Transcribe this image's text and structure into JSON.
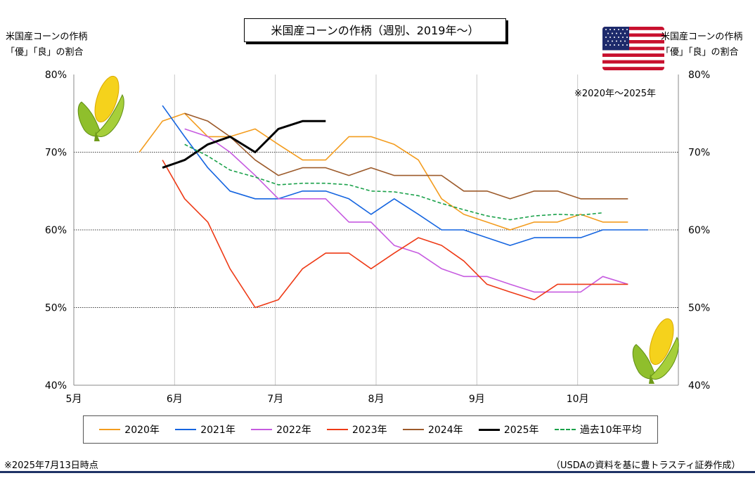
{
  "title": "米国産コーンの作柄（週別、2019年～）",
  "y_axis_left_title": [
    "米国産コーンの作柄",
    "「優」「良」の割合"
  ],
  "y_axis_right_title": [
    "米国産コーンの作柄",
    "「優」「良」の割合"
  ],
  "period_note": "※2020年～2025年",
  "footnote_left": "※2025年7月13日時点",
  "footnote_right": "（USDAの資料を基に豊トラスティ証券作成）",
  "icons": [
    "corn-icon",
    "us-flag-icon"
  ],
  "chart_data": {
    "type": "line",
    "x_unit": "month",
    "xlim": [
      5,
      11
    ],
    "x_ticks": [
      5,
      6,
      7,
      8,
      9,
      10
    ],
    "x_tick_labels": [
      "5月",
      "6月",
      "7月",
      "8月",
      "9月",
      "10月"
    ],
    "ylim": [
      40,
      80
    ],
    "y_ticks": [
      40,
      50,
      60,
      70,
      80
    ],
    "y_tick_labels": [
      "40%",
      "50%",
      "60%",
      "70%",
      "80%"
    ],
    "grid": {
      "x": "solid-light",
      "y": "dotted"
    },
    "legend_position": "bottom",
    "series": [
      {
        "name": "2020年",
        "color": "#f39c1e",
        "style": "solid",
        "x": [
          5.65,
          5.88,
          6.1,
          6.33,
          6.55,
          6.8,
          7.03,
          7.27,
          7.5,
          7.73,
          7.95,
          8.18,
          8.42,
          8.65,
          8.87,
          9.1,
          9.33,
          9.57,
          9.8,
          10.03,
          10.25,
          10.5
        ],
        "y": [
          70,
          74,
          75,
          72,
          72,
          73,
          71,
          69,
          69,
          72,
          72,
          71,
          69,
          64,
          62,
          61,
          60,
          61,
          61,
          62,
          61,
          61
        ]
      },
      {
        "name": "2021年",
        "color": "#1565e0",
        "style": "solid",
        "x": [
          5.88,
          6.1,
          6.33,
          6.55,
          6.8,
          7.03,
          7.27,
          7.5,
          7.73,
          7.95,
          8.18,
          8.42,
          8.65,
          8.87,
          9.1,
          9.33,
          9.57,
          9.8,
          10.03,
          10.25,
          10.5,
          10.7
        ],
        "y": [
          76,
          72,
          68,
          65,
          64,
          64,
          65,
          65,
          64,
          62,
          64,
          62,
          60,
          60,
          59,
          58,
          59,
          59,
          59,
          60,
          60,
          60
        ]
      },
      {
        "name": "2022年",
        "color": "#c65be0",
        "style": "solid",
        "x": [
          6.1,
          6.33,
          6.55,
          6.8,
          7.03,
          7.27,
          7.5,
          7.73,
          7.95,
          8.18,
          8.42,
          8.65,
          8.87,
          9.1,
          9.33,
          9.57,
          9.8,
          10.03,
          10.25,
          10.5
        ],
        "y": [
          73,
          72,
          70,
          67,
          64,
          64,
          64,
          61,
          61,
          58,
          57,
          55,
          54,
          54,
          53,
          52,
          52,
          52,
          54,
          53
        ]
      },
      {
        "name": "2023年",
        "color": "#ee3a16",
        "style": "solid",
        "x": [
          5.88,
          6.1,
          6.33,
          6.55,
          6.8,
          7.03,
          7.27,
          7.5,
          7.73,
          7.95,
          8.18,
          8.42,
          8.65,
          8.87,
          9.1,
          9.33,
          9.57,
          9.8,
          10.03,
          10.25,
          10.5
        ],
        "y": [
          69,
          64,
          61,
          55,
          50,
          51,
          55,
          57,
          57,
          55,
          57,
          59,
          58,
          56,
          53,
          52,
          51,
          53,
          53,
          53,
          53
        ]
      },
      {
        "name": "2024年",
        "color": "#9c5a2a",
        "style": "solid",
        "x": [
          6.1,
          6.33,
          6.55,
          6.8,
          7.03,
          7.27,
          7.5,
          7.73,
          7.95,
          8.18,
          8.42,
          8.65,
          8.87,
          9.1,
          9.33,
          9.57,
          9.8,
          10.03,
          10.25,
          10.5
        ],
        "y": [
          75,
          74,
          72,
          69,
          67,
          68,
          68,
          67,
          68,
          67,
          67,
          67,
          65,
          65,
          64,
          65,
          65,
          64,
          64,
          64
        ]
      },
      {
        "name": "2025年",
        "color": "#000000",
        "style": "solid-bold",
        "x": [
          5.88,
          6.1,
          6.33,
          6.55,
          6.8,
          7.03,
          7.27,
          7.5
        ],
        "y": [
          68,
          69,
          71,
          72,
          70,
          73,
          74,
          74
        ]
      },
      {
        "name": "過去10年平均",
        "color": "#1aa14a",
        "style": "dashed",
        "x": [
          6.1,
          6.33,
          6.55,
          6.8,
          7.03,
          7.27,
          7.5,
          7.73,
          7.95,
          8.18,
          8.42,
          8.65,
          8.87,
          9.1,
          9.33,
          9.57,
          9.8,
          10.03,
          10.25
        ],
        "y": [
          71,
          69.5,
          67.7,
          66.8,
          65.8,
          66,
          66,
          65.8,
          65,
          64.9,
          64.4,
          63.4,
          62.6,
          61.8,
          61.3,
          61.8,
          62,
          61.9,
          62.2
        ]
      }
    ]
  }
}
